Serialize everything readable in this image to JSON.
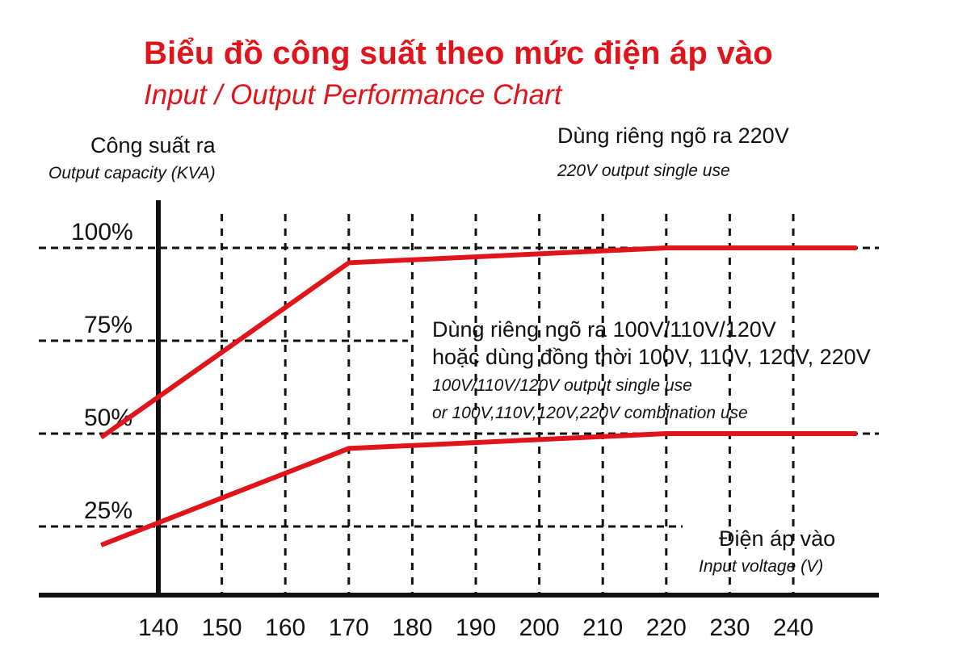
{
  "title": "Biểu đồ công suất theo mức điện áp vào",
  "subtitle": "Input / Output Performance Chart",
  "y_axis": {
    "label_vi": "Công suất ra",
    "label_en": "Output capacity (KVA)"
  },
  "x_axis": {
    "label_vi": "Điện áp vào",
    "label_en": "Input voltage (V)"
  },
  "series_labels": {
    "s1_vi": "Dùng riêng ngõ ra 220V",
    "s1_en": "220V output single use",
    "s2_vi_line1": "Dùng riêng ngõ ra 100V/110V/120V",
    "s2_vi_line2": "hoặc dùng đồng thời 100V, 110V, 120V, 220V",
    "s2_en_line1": "100V/110V/120V output single use",
    "s2_en_line2": "or 100V,110V,120V,220V combination use"
  },
  "colors": {
    "accent": "#e0141b",
    "axis": "#111111",
    "grid": "#111111"
  },
  "chart_data": {
    "type": "line",
    "title": "Biểu đồ công suất theo mức điện áp vào",
    "subtitle": "Input / Output Performance Chart",
    "xlabel": "Điện áp vào / Input voltage (V)",
    "ylabel": "Công suất ra / Output capacity (KVA)",
    "x_ticks": [
      140,
      150,
      160,
      170,
      180,
      190,
      200,
      210,
      220,
      230,
      240
    ],
    "y_ticks": [
      {
        "value": 25,
        "label": "25%"
      },
      {
        "value": 50,
        "label": "50%"
      },
      {
        "value": 75,
        "label": "75%"
      },
      {
        "value": 100,
        "label": "100%"
      }
    ],
    "xlim": [
      130,
      250
    ],
    "ylim": [
      6,
      115
    ],
    "grid": true,
    "series": [
      {
        "name": "Dùng riêng ngõ ra 220V",
        "x": [
          131,
          170,
          220,
          250
        ],
        "y": [
          49,
          96,
          100,
          100
        ]
      },
      {
        "name": "Dùng riêng ngõ ra 100V/110V/120V hoặc dùng đồng thời 100V, 110V, 120V, 220V",
        "x": [
          131,
          170,
          220,
          250
        ],
        "y": [
          20,
          46,
          50,
          50
        ]
      }
    ]
  }
}
